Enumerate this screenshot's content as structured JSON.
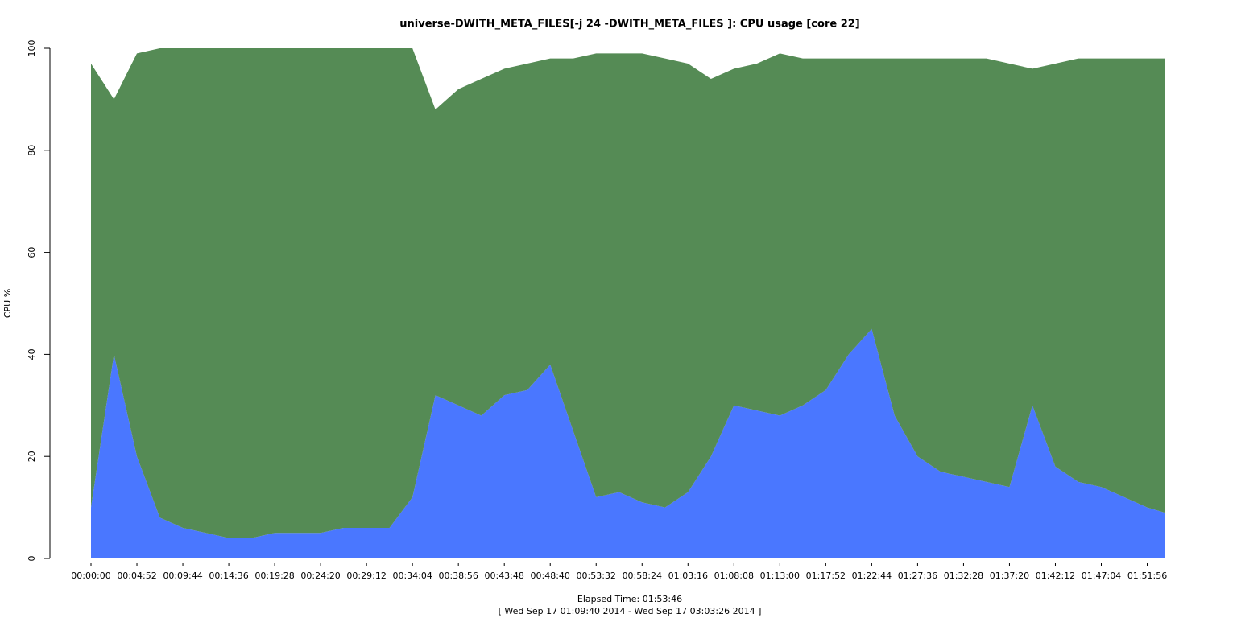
{
  "chart_data": {
    "type": "stacked-area",
    "title": "universe-DWITH_META_FILES[-j 24 -DWITH_META_FILES ]: CPU usage [core 22]",
    "ylabel": "CPU %",
    "xlabel": "Elapsed Time: 01:53:46",
    "subtitle": "[ Wed Sep 17 01:09:40 2014 - Wed Sep 17 03:03:26 2014 ]",
    "x": [
      0,
      146,
      292,
      438,
      584,
      730,
      876,
      1022,
      1168,
      1314,
      1460,
      1606,
      1752,
      1898,
      2044,
      2190,
      2336,
      2482,
      2628,
      2774,
      2920,
      3066,
      3212,
      3358,
      3504,
      3650,
      3796,
      3942,
      4088,
      4234,
      4380,
      4526,
      4672,
      4818,
      4964,
      5110,
      5256,
      5402,
      5548,
      5694,
      5840,
      5986,
      6132,
      6278,
      6424,
      6570,
      6716,
      6826
    ],
    "series": [
      {
        "color": "#4a77ff",
        "values": [
          10,
          40,
          20,
          8,
          6,
          5,
          4,
          4,
          5,
          5,
          5,
          6,
          6,
          6,
          12,
          32,
          30,
          28,
          32,
          33,
          38,
          25,
          12,
          13,
          11,
          10,
          13,
          20,
          30,
          29,
          28,
          30,
          33,
          40,
          45,
          28,
          20,
          17,
          16,
          15,
          14,
          30,
          18,
          15,
          14,
          12,
          10,
          9
        ]
      },
      {
        "color": "#558b55",
        "values": [
          87,
          50,
          79,
          92,
          94,
          95,
          96,
          96,
          95,
          95,
          95,
          94,
          94,
          94,
          88,
          56,
          62,
          66,
          64,
          64,
          60,
          73,
          87,
          86,
          88,
          88,
          84,
          74,
          66,
          68,
          71,
          68,
          65,
          58,
          53,
          70,
          78,
          81,
          82,
          83,
          83,
          66,
          79,
          83,
          84,
          86,
          88,
          89
        ]
      }
    ],
    "xlim": [
      0,
      6826
    ],
    "xticks": [
      {
        "value": 0,
        "label": "00:00:00"
      },
      {
        "value": 292,
        "label": "00:04:52"
      },
      {
        "value": 584,
        "label": "00:09:44"
      },
      {
        "value": 876,
        "label": "00:14:36"
      },
      {
        "value": 1168,
        "label": "00:19:28"
      },
      {
        "value": 1460,
        "label": "00:24:20"
      },
      {
        "value": 1752,
        "label": "00:29:12"
      },
      {
        "value": 2044,
        "label": "00:34:04"
      },
      {
        "value": 2336,
        "label": "00:38:56"
      },
      {
        "value": 2628,
        "label": "00:43:48"
      },
      {
        "value": 2920,
        "label": "00:48:40"
      },
      {
        "value": 3212,
        "label": "00:53:32"
      },
      {
        "value": 3504,
        "label": "00:58:24"
      },
      {
        "value": 3796,
        "label": "01:03:16"
      },
      {
        "value": 4088,
        "label": "01:08:08"
      },
      {
        "value": 4380,
        "label": "01:13:00"
      },
      {
        "value": 4672,
        "label": "01:17:52"
      },
      {
        "value": 4964,
        "label": "01:22:44"
      },
      {
        "value": 5256,
        "label": "01:27:36"
      },
      {
        "value": 5548,
        "label": "01:32:28"
      },
      {
        "value": 5840,
        "label": "01:37:20"
      },
      {
        "value": 6132,
        "label": "01:42:12"
      },
      {
        "value": 6424,
        "label": "01:47:04"
      },
      {
        "value": 6716,
        "label": "01:51:56"
      }
    ],
    "ylim": [
      0,
      100
    ],
    "yticks": [
      0,
      20,
      40,
      60,
      80,
      100
    ]
  }
}
